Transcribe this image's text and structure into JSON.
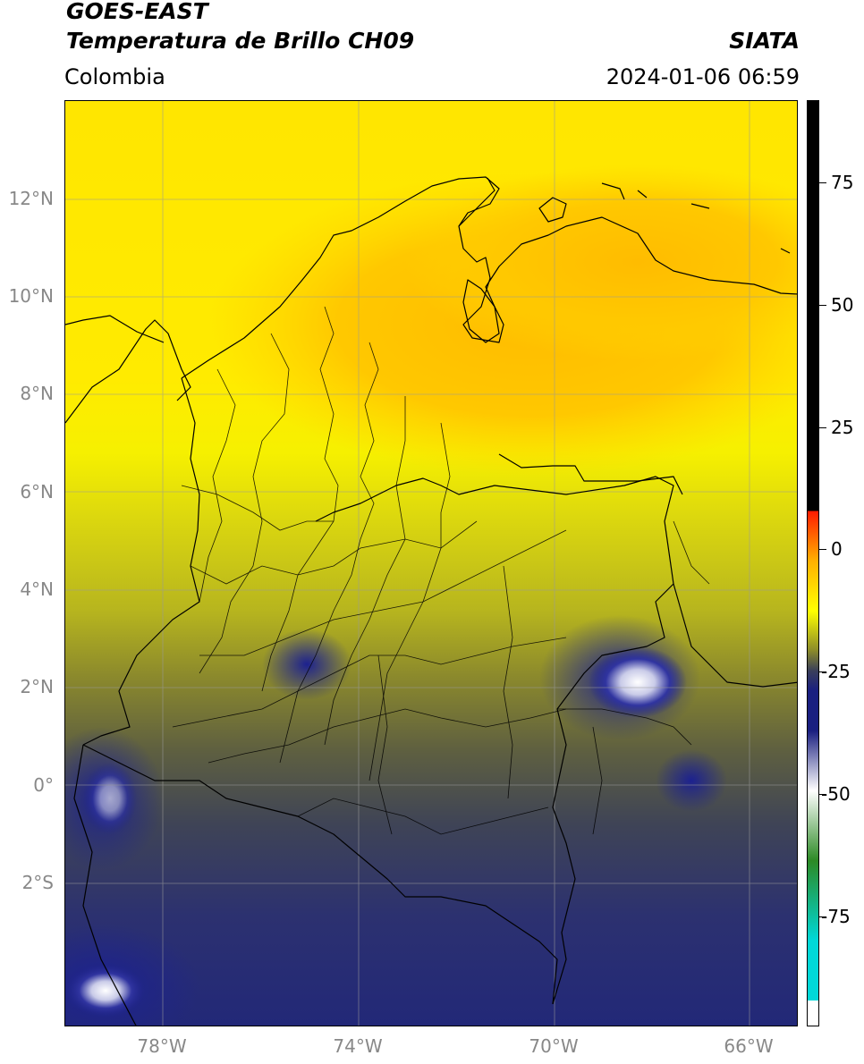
{
  "header": {
    "satellite": "GOES-EAST",
    "product": "Temperatura de Brillo CH09",
    "region": "Colombia",
    "institution": "SIATA",
    "datetime": "2024-01-06 06:59"
  },
  "map": {
    "lat_labels": [
      "12°N",
      "10°N",
      "8°N",
      "6°N",
      "4°N",
      "2°N",
      "0°",
      "2°S"
    ],
    "lon_labels": [
      "78°W",
      "74°W",
      "70°W",
      "66°W"
    ],
    "lat_range": [
      -4.9,
      14.0
    ],
    "lon_range": [
      -80.0,
      -65.0
    ]
  },
  "colorbar": {
    "labels": [
      "75",
      "50",
      "25",
      "0",
      "-25",
      "-50",
      "-75"
    ],
    "range": [
      -95,
      90
    ],
    "colors": {
      "above": "#000000",
      "red": "#ff1a00",
      "orange": "#ffb000",
      "yellow": "#ffff00",
      "olive": "#8a8a2a",
      "slate": "#3a3f5a",
      "navy": "#1a1f80",
      "white": "#ffffff",
      "green": "#2c8a25",
      "cyan": "#00d8d8"
    }
  }
}
